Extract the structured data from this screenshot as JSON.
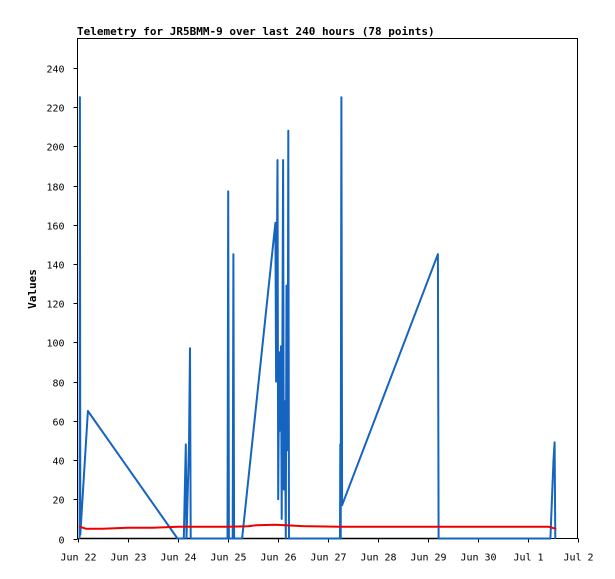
{
  "chart_data": {
    "type": "line",
    "title": "Telemetry for JR5BMM-9 over last 240 hours (78 points)",
    "xlabel": "",
    "ylabel": "Values",
    "x_range": [
      "2025-06-22T00:00",
      "2025-07-02T00:00"
    ],
    "ylim": [
      0,
      255
    ],
    "y_ticks": [
      0,
      20,
      40,
      60,
      80,
      100,
      120,
      140,
      160,
      180,
      200,
      220,
      240
    ],
    "x_ticks": [
      {
        "date": "2025-06-22",
        "label": "Jun 22"
      },
      {
        "date": "2025-06-23",
        "label": "Jun 23"
      },
      {
        "date": "2025-06-24",
        "label": "Jun 24"
      },
      {
        "date": "2025-06-25",
        "label": "Jun 25"
      },
      {
        "date": "2025-06-26",
        "label": "Jun 26"
      },
      {
        "date": "2025-06-27",
        "label": "Jun 27"
      },
      {
        "date": "2025-06-28",
        "label": "Jun 28"
      },
      {
        "date": "2025-06-29",
        "label": "Jun 29"
      },
      {
        "date": "2025-06-30",
        "label": "Jun 30"
      },
      {
        "date": "2025-07-01",
        "label": "Jul 1"
      },
      {
        "date": "2025-07-02",
        "label": "Jul 2"
      }
    ],
    "grid": false,
    "series": [
      {
        "color": "#000000",
        "points": [
          [
            "2025-06-22T01:00",
            0
          ],
          [
            "2025-07-01T11:00",
            0
          ]
        ]
      },
      {
        "color": "#1565c0",
        "points": [
          [
            "2025-06-22T01:00",
            0
          ],
          [
            "2025-06-22T01:10",
            225
          ],
          [
            "2025-06-22T01:20",
            2
          ],
          [
            "2025-06-22T05:00",
            65
          ],
          [
            "2025-06-24T00:00",
            0
          ],
          [
            "2025-06-24T03:00",
            0
          ],
          [
            "2025-06-24T04:00",
            48
          ],
          [
            "2025-06-24T04:20",
            0
          ],
          [
            "2025-06-24T05:30",
            48
          ],
          [
            "2025-06-24T06:00",
            97
          ],
          [
            "2025-06-24T06:20",
            0
          ],
          [
            "2025-06-25T00:00",
            0
          ],
          [
            "2025-06-25T00:20",
            177
          ],
          [
            "2025-06-25T00:40",
            0
          ],
          [
            "2025-06-25T02:30",
            0
          ],
          [
            "2025-06-25T02:50",
            145
          ],
          [
            "2025-06-25T03:10",
            0
          ],
          [
            "2025-06-25T07:00",
            0
          ],
          [
            "2025-06-25T23:00",
            161
          ],
          [
            "2025-06-25T23:20",
            80
          ],
          [
            "2025-06-26T00:00",
            193
          ],
          [
            "2025-06-26T00:20",
            20
          ],
          [
            "2025-06-26T00:50",
            95
          ],
          [
            "2025-06-26T01:10",
            55
          ],
          [
            "2025-06-26T01:40",
            98
          ],
          [
            "2025-06-26T02:00",
            10
          ],
          [
            "2025-06-26T02:40",
            193
          ],
          [
            "2025-06-26T03:00",
            25
          ],
          [
            "2025-06-26T03:30",
            70
          ],
          [
            "2025-06-26T04:00",
            0
          ],
          [
            "2025-06-26T04:20",
            129
          ],
          [
            "2025-06-26T04:50",
            45
          ],
          [
            "2025-06-26T05:10",
            208
          ],
          [
            "2025-06-26T05:30",
            0
          ],
          [
            "2025-06-27T06:00",
            0
          ],
          [
            "2025-06-27T06:10",
            48
          ],
          [
            "2025-06-27T06:20",
            0
          ],
          [
            "2025-06-27T06:40",
            225
          ],
          [
            "2025-06-27T07:00",
            17
          ],
          [
            "2025-06-29T05:00",
            145
          ],
          [
            "2025-06-29T05:20",
            0
          ],
          [
            "2025-07-01T11:00",
            0
          ],
          [
            "2025-07-01T12:30",
            40
          ],
          [
            "2025-07-01T13:00",
            49
          ],
          [
            "2025-07-01T13:20",
            0
          ]
        ]
      },
      {
        "color": "#ee0000",
        "points": [
          [
            "2025-06-22T01:00",
            6
          ],
          [
            "2025-06-22T04:00",
            5
          ],
          [
            "2025-06-22T12:00",
            5
          ],
          [
            "2025-06-23T00:00",
            5.5
          ],
          [
            "2025-06-23T12:00",
            5.5
          ],
          [
            "2025-06-24T00:00",
            6
          ],
          [
            "2025-06-25T00:00",
            6
          ],
          [
            "2025-06-25T10:00",
            6.2
          ],
          [
            "2025-06-25T14:00",
            6.8
          ],
          [
            "2025-06-25T23:00",
            7
          ],
          [
            "2025-06-26T12:00",
            6.3
          ],
          [
            "2025-06-27T06:00",
            6
          ],
          [
            "2025-06-29T05:00",
            6
          ],
          [
            "2025-07-01T10:00",
            6
          ],
          [
            "2025-07-01T13:30",
            5
          ]
        ]
      }
    ]
  }
}
